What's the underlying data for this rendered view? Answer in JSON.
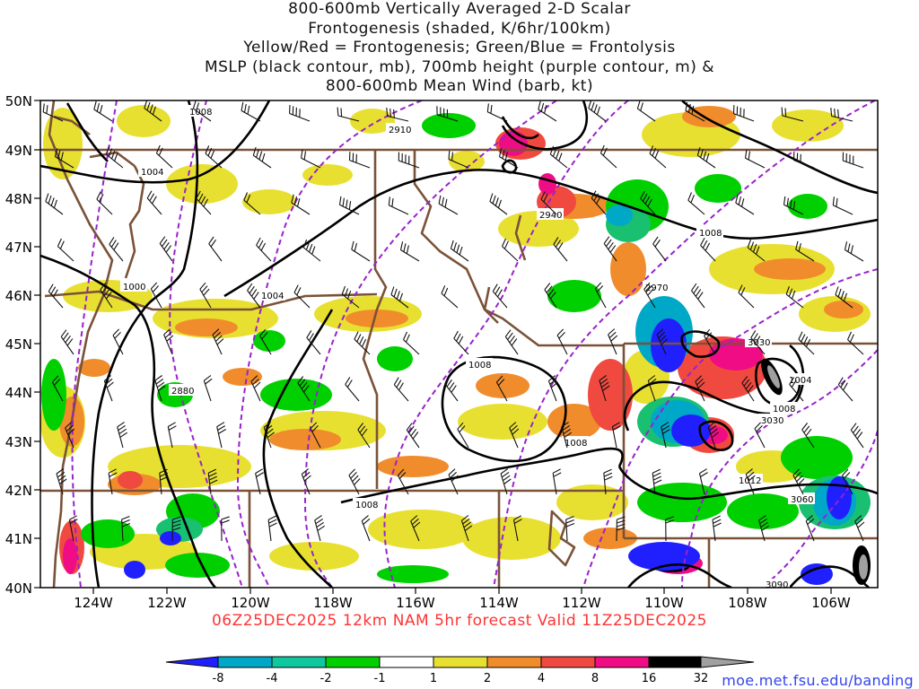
{
  "title": {
    "lines": [
      "800-600mb Vertically Averaged 2-D Scalar",
      "Frontogenesis (shaded, K/6hr/100km)",
      "Yellow/Red = Frontogenesis;  Green/Blue = Frontolysis",
      "MSLP (black contour, mb), 700mb height (purple contour, m) &",
      "800-600mb Mean Wind (barb, kt)"
    ]
  },
  "axes": {
    "lat_labels": [
      "50N",
      "49N",
      "48N",
      "47N",
      "46N",
      "45N",
      "44N",
      "43N",
      "42N",
      "41N",
      "40N"
    ],
    "lon_labels": [
      "124W",
      "122W",
      "120W",
      "118W",
      "116W",
      "114W",
      "112W",
      "110W",
      "108W",
      "106W"
    ],
    "lat_range": [
      40,
      50
    ],
    "lon_range": [
      -125.1,
      -104.8
    ]
  },
  "contour_labels": {
    "mslp": [
      "1008",
      "1004",
      "1000",
      "1004",
      "1008",
      "1008",
      "1008",
      "1004",
      "1008",
      "1012",
      "1008"
    ],
    "height": [
      "2910",
      "2940",
      "2970",
      "2880",
      "3030",
      "3030",
      "3060",
      "3090"
    ]
  },
  "colorbar": {
    "tick_labels": [
      "-8",
      "-4",
      "-2",
      "-1",
      "1",
      "2",
      "4",
      "8",
      "16",
      "32"
    ],
    "colors": [
      "#2020ff",
      "#00a8c8",
      "#10c8a0",
      "#18c070",
      "#00d000",
      "#ffffff",
      "#e8e030",
      "#f08c2c",
      "#f04a40",
      "#f00c84",
      "#000000",
      "#a0a0a0"
    ]
  },
  "footer": {
    "run_info": "06Z25DEC2025 12km NAM 5hr forecast Valid 11Z25DEC2025",
    "credit": "moe.met.fsu.edu/banding"
  }
}
